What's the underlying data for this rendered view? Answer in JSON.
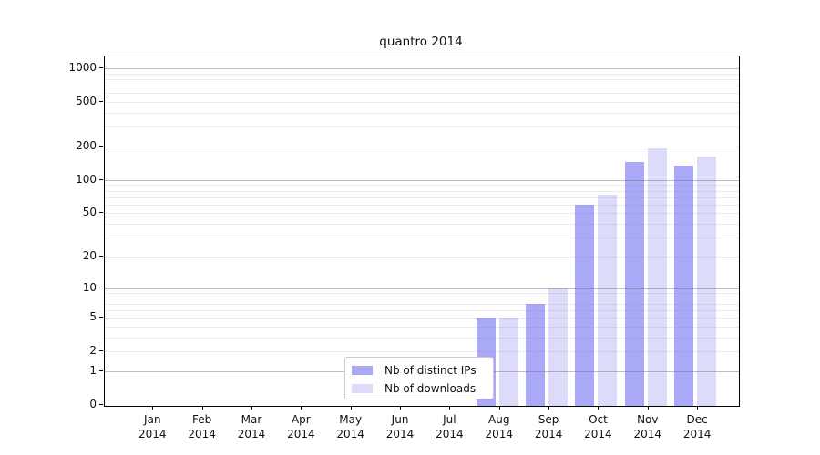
{
  "chart_data": {
    "type": "bar",
    "title": "quantro 2014",
    "x_ticks": [
      {
        "line1": "Jan",
        "line2": "2014"
      },
      {
        "line1": "Feb",
        "line2": "2014"
      },
      {
        "line1": "Mar",
        "line2": "2014"
      },
      {
        "line1": "Apr",
        "line2": "2014"
      },
      {
        "line1": "May",
        "line2": "2014"
      },
      {
        "line1": "Jun",
        "line2": "2014"
      },
      {
        "line1": "Jul",
        "line2": "2014"
      },
      {
        "line1": "Aug",
        "line2": "2014"
      },
      {
        "line1": "Sep",
        "line2": "2014"
      },
      {
        "line1": "Oct",
        "line2": "2014"
      },
      {
        "line1": "Nov",
        "line2": "2014"
      },
      {
        "line1": "Dec",
        "line2": "2014"
      }
    ],
    "categories": [
      "Jan 2014",
      "Feb 2014",
      "Mar 2014",
      "Apr 2014",
      "May 2014",
      "Jun 2014",
      "Jul 2014",
      "Aug 2014",
      "Sep 2014",
      "Oct 2014",
      "Nov 2014",
      "Dec 2014"
    ],
    "series": [
      {
        "name": "Nb of distinct IPs",
        "color": "#a9a9f7",
        "values": [
          0,
          0,
          0,
          0,
          0,
          0,
          0,
          5,
          7,
          60,
          146,
          135
        ]
      },
      {
        "name": "Nb of downloads",
        "color": "#dcdcfa",
        "values": [
          0,
          0,
          0,
          0,
          0,
          0,
          0,
          5,
          10,
          74,
          192,
          161
        ]
      }
    ],
    "y_scale": "log1p",
    "y_tick_values": [
      0,
      1,
      2,
      5,
      10,
      20,
      50,
      100,
      200,
      500,
      1000
    ],
    "y_tick_labels": [
      "0",
      "1",
      "2",
      "5",
      "10",
      "20",
      "50",
      "100",
      "200",
      "500",
      "1000"
    ],
    "ylim": [
      0,
      1270
    ],
    "grid": {
      "horizontal": true,
      "major_decades": [
        1,
        10,
        100,
        1000
      ],
      "minor_multiples": [
        2,
        3,
        4,
        5,
        6,
        7,
        8,
        9
      ],
      "drawn_over_bars": true
    },
    "legend": {
      "position": "inside-bottom-center",
      "background": "#ffffff",
      "border_color": "#cccccc"
    },
    "style_colors": {
      "spine": "#000000",
      "major_grid": "#bdbdbd",
      "minor_grid": "#e9e9e9",
      "text": "#111111",
      "background": "#ffffff"
    }
  }
}
